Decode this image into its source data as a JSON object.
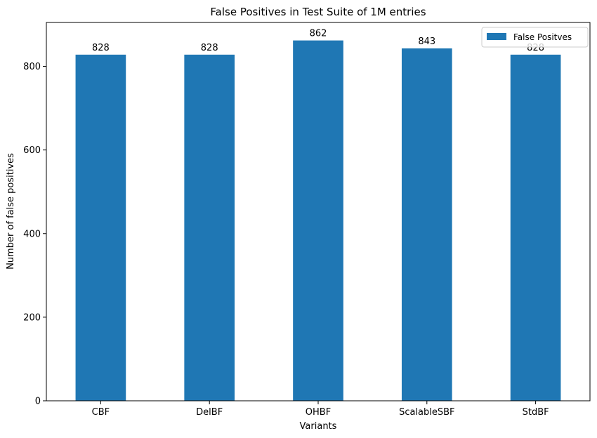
{
  "chart_data": {
    "type": "bar",
    "title": "False Positives in Test Suite of 1M entries",
    "xlabel": "Variants",
    "ylabel": "Number of false positives",
    "categories": [
      "CBF",
      "DelBF",
      "OHBF",
      "ScalableSBF",
      "StdBF"
    ],
    "series": [
      {
        "name": "False Positves",
        "values": [
          828,
          828,
          862,
          843,
          828
        ],
        "color": "#1f77b4"
      }
    ],
    "data_labels": [
      "828",
      "828",
      "862",
      "843",
      "828"
    ],
    "yticks": [
      0,
      200,
      400,
      600,
      800
    ],
    "ylim": [
      0,
      905
    ],
    "grid": false,
    "legend_position": "top-right"
  }
}
